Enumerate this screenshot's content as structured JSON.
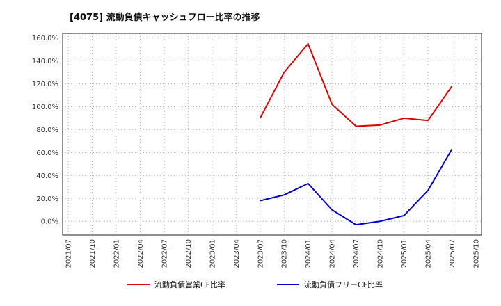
{
  "chart_data": {
    "type": "line",
    "title": "[4075]  流動負債キャッシュフロー比率の推移",
    "categories": [
      "2021/07",
      "2021/10",
      "2022/01",
      "2022/04",
      "2022/07",
      "2022/10",
      "2023/01",
      "2023/04",
      "2023/07",
      "2023/10",
      "2024/01",
      "2024/04",
      "2024/07",
      "2024/10",
      "2025/01",
      "2025/04",
      "2025/07",
      "2025/10"
    ],
    "series": [
      {
        "name": "流動負債営業CF比率",
        "color": "#dd0000",
        "values": [
          null,
          null,
          null,
          null,
          null,
          null,
          null,
          null,
          90,
          130,
          155,
          102,
          83,
          84,
          90,
          88,
          118,
          null
        ]
      },
      {
        "name": "流動負債フリーCF比率",
        "color": "#0000cc",
        "values": [
          null,
          null,
          null,
          null,
          null,
          null,
          null,
          null,
          18,
          23,
          33,
          10,
          -3,
          0,
          5,
          27,
          63,
          null
        ]
      }
    ],
    "ylim": [
      -12,
      164
    ],
    "yticks": [
      0,
      20,
      40,
      60,
      80,
      100,
      120,
      140,
      160
    ],
    "ytick_suffix": "%",
    "grid": true,
    "legend_position": "bottom"
  }
}
